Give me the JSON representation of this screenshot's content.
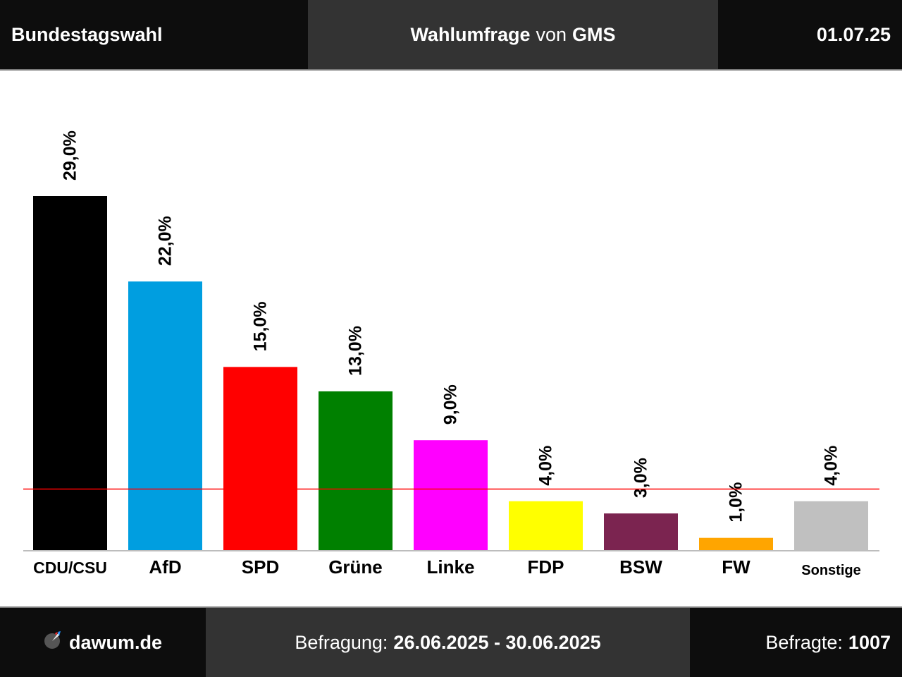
{
  "header": {
    "title": "Bundestagswahl",
    "poll_word": "Wahlumfrage",
    "von": "von",
    "institute": "GMS",
    "date": "01.07.25"
  },
  "footer": {
    "brand": "dawum.de",
    "survey_label": "Befragung:",
    "survey_period": "26.06.2025 - 30.06.2025",
    "respondents_label": "Befragte:",
    "respondents": "1007"
  },
  "chart_data": {
    "type": "bar",
    "categories": [
      "CDU/CSU",
      "AfD",
      "SPD",
      "Grüne",
      "Linke",
      "FDP",
      "BSW",
      "FW",
      "Sonstige"
    ],
    "values": [
      29.0,
      22.0,
      15.0,
      13.0,
      9.0,
      4.0,
      3.0,
      1.0,
      4.0
    ],
    "value_labels": [
      "29,0%",
      "22,0%",
      "15,0%",
      "13,0%",
      "9,0%",
      "4,0%",
      "3,0%",
      "1,0%",
      "4,0%"
    ],
    "colors": [
      "#000000",
      "#009ee0",
      "#ff0000",
      "#008000",
      "#ff00ff",
      "#ffff00",
      "#7b2450",
      "#ffa500",
      "#c0c0c0"
    ],
    "threshold": 5.0,
    "threshold_color": "#ff0000",
    "ylim": [
      0,
      29.0
    ],
    "grid": false,
    "legend": "none"
  }
}
